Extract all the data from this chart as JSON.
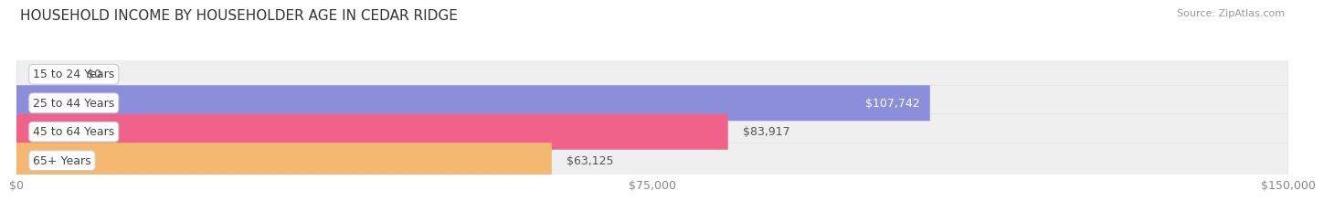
{
  "title": "HOUSEHOLD INCOME BY HOUSEHOLDER AGE IN CEDAR RIDGE",
  "source": "Source: ZipAtlas.com",
  "categories": [
    "15 to 24 Years",
    "25 to 44 Years",
    "45 to 64 Years",
    "65+ Years"
  ],
  "values": [
    0,
    107742,
    83917,
    63125
  ],
  "bar_colors": [
    "#72cece",
    "#8b8fdb",
    "#f0628a",
    "#f5b870"
  ],
  "bar_bg_color": "#efefef",
  "bar_border_color": "#e0e0e0",
  "max_value": 150000,
  "xtick_values": [
    0,
    75000,
    150000
  ],
  "xtick_labels": [
    "$0",
    "$75,000",
    "$150,000"
  ],
  "value_labels": [
    "$0",
    "$107,742",
    "$83,917",
    "$63,125"
  ],
  "title_fontsize": 11,
  "source_fontsize": 8,
  "label_fontsize": 9,
  "value_fontsize": 9,
  "bar_height": 0.62,
  "background_color": "#ffffff",
  "label_text_color": "#444444",
  "value_text_color_inside": "#ffffff",
  "value_text_color_outside": "#555555",
  "grid_color": "#cccccc",
  "tick_color": "#888888"
}
